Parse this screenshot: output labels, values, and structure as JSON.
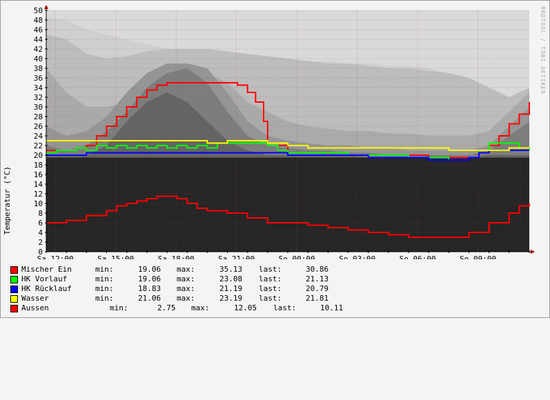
{
  "watermark": "RRDTOOL / TOBI OETIKER",
  "chart_data": {
    "type": "line",
    "title": "",
    "xlabel": "",
    "ylabel": "Temperatur (°C)",
    "ylim": [
      0,
      50
    ],
    "yticks": [
      0,
      2,
      4,
      6,
      8,
      10,
      12,
      14,
      16,
      18,
      20,
      22,
      24,
      26,
      28,
      30,
      32,
      34,
      36,
      38,
      40,
      42,
      44,
      46,
      48,
      50
    ],
    "xlim": [
      0,
      24
    ],
    "xticks": [
      {
        "x": 0.45,
        "label": "Sa 12:00"
      },
      {
        "x": 3.45,
        "label": "Sa 15:00"
      },
      {
        "x": 6.45,
        "label": "Sa 18:00"
      },
      {
        "x": 9.45,
        "label": "Sa 21:00"
      },
      {
        "x": 12.45,
        "label": "So 00:00"
      },
      {
        "x": 15.45,
        "label": "So 03:00"
      },
      {
        "x": 18.45,
        "label": "So 06:00"
      },
      {
        "x": 21.45,
        "label": "So 09:00"
      }
    ],
    "background_bands": {
      "x": [
        0,
        1,
        2,
        3,
        4,
        5,
        6,
        7,
        8,
        9,
        10,
        11,
        12,
        13,
        14,
        15,
        16,
        17,
        18,
        19,
        20,
        21,
        22,
        23,
        24
      ],
      "layers": [
        {
          "color": "#cfcfcf",
          "values": [
            48.5,
            48,
            46,
            45,
            44,
            43,
            42,
            41.5,
            41,
            40.5,
            40,
            40,
            40,
            39.5,
            39.5,
            39,
            39,
            38.5,
            38.5,
            38,
            37,
            36,
            34,
            30,
            27
          ]
        },
        {
          "color": "#bdbdbd",
          "values": [
            45,
            44,
            41,
            40,
            40.5,
            41.5,
            42,
            42,
            42,
            41.5,
            41,
            40.5,
            40,
            39.5,
            39,
            39,
            38.5,
            38,
            38,
            37.5,
            37,
            36,
            34,
            32,
            34
          ]
        },
        {
          "color": "#aaaaaa",
          "values": [
            38,
            33,
            30,
            30,
            31,
            33,
            36,
            38,
            37,
            35,
            31,
            29,
            27,
            26,
            25.5,
            25,
            25,
            24.5,
            24.5,
            24,
            24,
            24,
            25,
            29,
            33
          ]
        },
        {
          "color": "#959595",
          "values": [
            26,
            24,
            25,
            28,
            33,
            37,
            39,
            39,
            38,
            33,
            27,
            24,
            23,
            22.5,
            22,
            22,
            21.5,
            21.5,
            21,
            21,
            21,
            21,
            22,
            26,
            30
          ]
        },
        {
          "color": "#7d7d7d",
          "values": [
            22,
            21,
            22,
            25,
            29,
            34,
            37,
            38,
            35,
            29,
            24,
            22,
            21.5,
            21,
            21,
            20.5,
            20.5,
            20,
            20,
            20,
            20,
            20,
            21,
            24,
            27
          ]
        },
        {
          "color": "#646464",
          "values": [
            20,
            20,
            20,
            22,
            27,
            31,
            33,
            31,
            27,
            23,
            21,
            20,
            20,
            20,
            20,
            20,
            19.5,
            19.5,
            19.5,
            19.5,
            19.5,
            19.5,
            20,
            20,
            20
          ]
        }
      ]
    },
    "series": [
      {
        "name": "Mischer Ein",
        "color": "#ff0000",
        "x": [
          0,
          1,
          1.5,
          2,
          2.5,
          3,
          3.5,
          4,
          4.5,
          5,
          5.5,
          6,
          6.5,
          7,
          7.5,
          8,
          8.5,
          9,
          9.5,
          10,
          10.4,
          10.8,
          11,
          12,
          13,
          14,
          15,
          16,
          17,
          18,
          19,
          20,
          20.5,
          21,
          21.5,
          22,
          22.5,
          23,
          23.5,
          24
        ],
        "y": [
          21,
          21,
          21.5,
          22,
          24,
          26,
          28,
          30,
          32,
          33.5,
          34.5,
          35,
          35,
          35,
          35,
          35,
          35,
          35,
          34.5,
          33,
          31,
          27,
          22,
          20.5,
          20.5,
          20,
          20,
          20,
          20,
          20,
          19.5,
          19.5,
          19.5,
          19.5,
          20.5,
          22,
          24,
          26.5,
          28.5,
          31
        ]
      },
      {
        "name": "HK Vorlauf",
        "color": "#00ff00",
        "x": [
          0,
          0.5,
          1,
          1.5,
          2,
          2.5,
          3,
          3.5,
          4,
          4.5,
          5,
          5.5,
          6,
          6.5,
          7,
          7.5,
          8,
          8.5,
          9,
          9.5,
          10,
          10.5,
          11,
          11.5,
          12,
          12.5,
          13,
          13.5,
          14,
          15,
          16,
          17,
          18,
          19,
          19.5,
          20,
          20.5,
          21,
          21.5,
          22,
          22.5,
          23,
          23.5,
          24
        ],
        "y": [
          20.5,
          21,
          21,
          21.5,
          21,
          22,
          21.5,
          22,
          21.5,
          22,
          21.5,
          22,
          21.5,
          22,
          21.5,
          22,
          21.5,
          22.5,
          22.5,
          22.5,
          22.5,
          22.5,
          22,
          21,
          20.5,
          20.5,
          20.5,
          20.5,
          20.5,
          20,
          20,
          20,
          19.5,
          19.5,
          19.5,
          19,
          19,
          19.5,
          21,
          22.5,
          22.5,
          22.5,
          21.5,
          21
        ]
      },
      {
        "name": "HK Rücklauf",
        "color": "#0000ff",
        "x": [
          0,
          1,
          2,
          3,
          4,
          5,
          6,
          7,
          8,
          9,
          10,
          11,
          12,
          13,
          14,
          15,
          16,
          17,
          18,
          19,
          20,
          20.5,
          21,
          21.5,
          22,
          23,
          24
        ],
        "y": [
          20,
          20,
          20.5,
          20.5,
          20.5,
          20.5,
          20.5,
          20.5,
          20.5,
          20.5,
          20.5,
          20.5,
          20,
          20,
          20,
          20,
          19.5,
          19.5,
          19.5,
          19,
          19,
          19,
          19.5,
          20.5,
          21,
          21,
          21
        ]
      },
      {
        "name": "Wasser",
        "color": "#ffff00",
        "x": [
          0,
          2,
          4,
          6,
          8,
          9,
          10,
          11,
          12,
          13,
          14,
          16,
          18,
          20,
          21,
          22,
          23,
          24
        ],
        "y": [
          23,
          23,
          23,
          23,
          22.5,
          23,
          23,
          22.5,
          22,
          21.5,
          21.5,
          21.5,
          21.5,
          21,
          21,
          21,
          21.5,
          21.5
        ]
      },
      {
        "name": "Aussen",
        "color": "#ff0000",
        "x": [
          0,
          1,
          2,
          3,
          3.5,
          4,
          4.5,
          5,
          5.5,
          6,
          6.5,
          7,
          7.5,
          8,
          9,
          10,
          11,
          12,
          13,
          14,
          15,
          16,
          17,
          18,
          19,
          20,
          21,
          22,
          23,
          23.5,
          24
        ],
        "y": [
          6,
          6.5,
          7.5,
          8.5,
          9.5,
          10,
          10.5,
          11,
          11.5,
          11.5,
          11,
          10,
          9,
          8.5,
          8,
          7,
          6,
          6,
          5.5,
          5,
          4.5,
          4,
          3.5,
          3,
          3,
          3,
          4,
          6,
          8,
          9.5,
          10
        ]
      }
    ]
  },
  "legend": [
    {
      "name": "Mischer Ein",
      "color": "#ff0000",
      "min_label": "min:",
      "min": "19.06",
      "max_label": "max:",
      "max": "35.13",
      "last_label": "last:",
      "last": "30.86"
    },
    {
      "name": "HK Vorlauf",
      "color": "#00ff00",
      "min_label": "min:",
      "min": "19.06",
      "max_label": "max:",
      "max": "23.08",
      "last_label": "last:",
      "last": "21.13"
    },
    {
      "name": "HK Rücklauf",
      "color": "#0000ff",
      "min_label": "min:",
      "min": "18.83",
      "max_label": "max:",
      "max": "21.19",
      "last_label": "last:",
      "last": "20.79"
    },
    {
      "name": "Wasser",
      "color": "#ffff00",
      "min_label": "min:",
      "min": "21.06",
      "max_label": "max:",
      "max": "23.19",
      "last_label": "last:",
      "last": "21.81"
    },
    {
      "name": "Aussen",
      "color": "#ff0000",
      "min_label": "min:",
      "min": "2.75",
      "max_label": "max:",
      "max": "12.05",
      "last_label": "last:",
      "last": "10.11"
    }
  ]
}
